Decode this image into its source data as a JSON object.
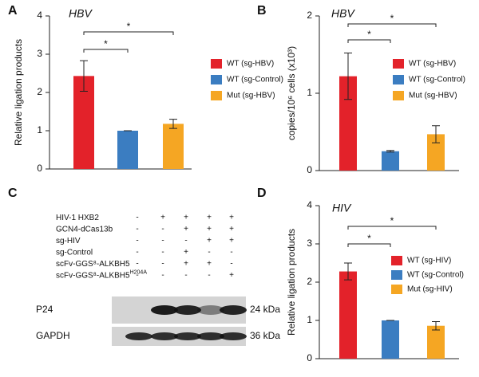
{
  "chart_data": [
    {
      "type": "bar",
      "panel": "A",
      "title": "HBV",
      "ylabel": "Relative ligation products",
      "categories": [
        "WT (sg-HBV)",
        "WT (sg-Control)",
        "Mut (sg-HBV)"
      ],
      "colors": [
        "#e3222a",
        "#3b7dc1",
        "#f5a623"
      ],
      "values": [
        2.43,
        1.0,
        1.18
      ],
      "errors": [
        0.4,
        0.0,
        0.12
      ],
      "ylim": [
        0,
        4
      ],
      "yticks": [
        0,
        1,
        2,
        3,
        4
      ],
      "legend": "right",
      "significance": [
        {
          "label": "*",
          "between": [
            0,
            1
          ]
        },
        {
          "label": "*",
          "between": [
            0,
            2
          ]
        }
      ]
    },
    {
      "type": "bar",
      "panel": "B",
      "title": "HBV",
      "ylabel": "copies/10⁶ cells (x10³)",
      "categories": [
        "WT (sg-HBV)",
        "WT (sg-Control)",
        "Mut (sg-HBV)"
      ],
      "colors": [
        "#e3222a",
        "#3b7dc1",
        "#f5a623"
      ],
      "values": [
        1.22,
        0.25,
        0.47
      ],
      "errors": [
        0.3,
        0.01,
        0.11
      ],
      "ylim": [
        0,
        2
      ],
      "yticks": [
        0,
        1,
        2
      ],
      "legend": "right",
      "significance": [
        {
          "label": "*",
          "between": [
            0,
            1
          ]
        },
        {
          "label": "*",
          "between": [
            0,
            2
          ]
        }
      ]
    },
    {
      "type": "bar",
      "panel": "D",
      "title": "HIV",
      "ylabel": "Relative ligation products",
      "categories": [
        "WT (sg-HIV)",
        "WT (sg-Control)",
        "Mut (sg-HIV)"
      ],
      "colors": [
        "#e3222a",
        "#3b7dc1",
        "#f5a623"
      ],
      "values": [
        2.28,
        1.0,
        0.86
      ],
      "errors": [
        0.22,
        0.0,
        0.11
      ],
      "ylim": [
        0,
        4
      ],
      "yticks": [
        0,
        1,
        2,
        3,
        4
      ],
      "legend": "right",
      "significance": [
        {
          "label": "*",
          "between": [
            0,
            1
          ]
        },
        {
          "label": "*",
          "between": [
            0,
            2
          ]
        }
      ]
    }
  ],
  "blot": {
    "panel": "C",
    "conditions": [
      {
        "label": "HIV-1 HXB2",
        "signs": [
          "-",
          "+",
          "+",
          "+",
          "+"
        ]
      },
      {
        "label": "GCN4-dCas13b",
        "signs": [
          "-",
          "-",
          "+",
          "+",
          "+"
        ]
      },
      {
        "label": "sg-HIV",
        "signs": [
          "-",
          "-",
          "-",
          "+",
          "+"
        ]
      },
      {
        "label": "sg-Control",
        "signs": [
          "-",
          "-",
          "+",
          "-",
          "-"
        ]
      },
      {
        "label": "scFv-GGS⁸-ALKBH5",
        "signs": [
          "-",
          "-",
          "+",
          "+",
          "-"
        ]
      },
      {
        "label": "scFv-GGS⁸-ALKBH5",
        "sup": "H204A",
        "signs": [
          "-",
          "-",
          "-",
          "-",
          "+"
        ]
      }
    ],
    "bands": [
      {
        "label": "P24",
        "size": "24 kDa"
      },
      {
        "label": "GAPDH",
        "size": "36 kDa"
      }
    ]
  }
}
